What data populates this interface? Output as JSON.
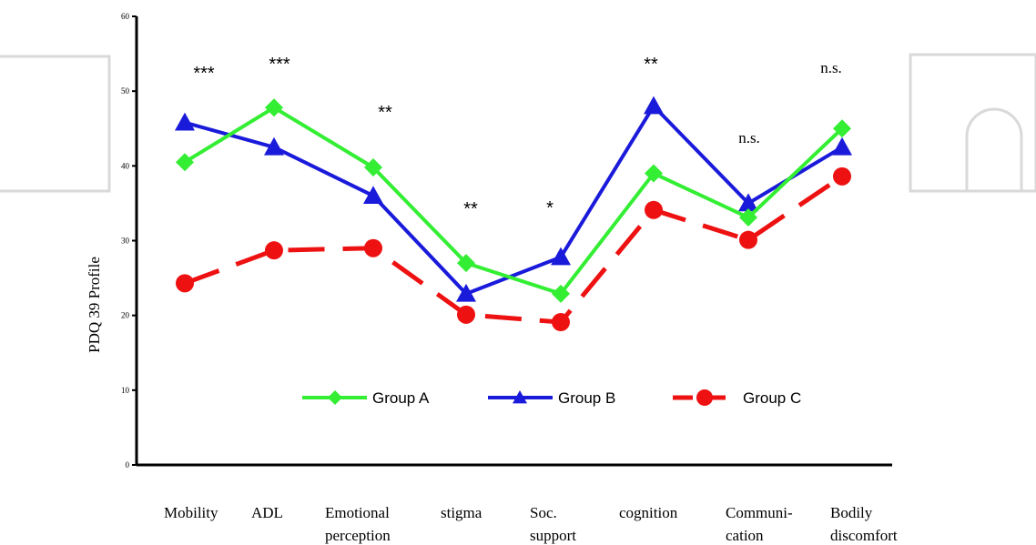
{
  "chart_data": {
    "type": "line",
    "title": "",
    "xlabel": "",
    "ylabel": "PDQ 39 Profile",
    "ylim": [
      0,
      60
    ],
    "yticks": [
      0,
      10,
      20,
      30,
      40,
      50,
      60
    ],
    "grid": false,
    "legend_position": "bottom-center",
    "categories": [
      [
        "Mobility"
      ],
      [
        "ADL"
      ],
      [
        "Emotional",
        "perception"
      ],
      [
        "stigma"
      ],
      [
        "Soc.",
        "support"
      ],
      [
        "cognition"
      ],
      [
        "Communi-",
        "cation"
      ],
      [
        "Bodily",
        "discomfort"
      ]
    ],
    "significance": [
      "***",
      "***",
      "**",
      "**",
      "*",
      "**",
      "n.s.",
      "n.s."
    ],
    "series": [
      {
        "name": "Group A",
        "color": "#33ee33",
        "marker": "diamond",
        "dash": "solid",
        "values": [
          40.5,
          47.8,
          39.8,
          27.0,
          22.9,
          39.0,
          33.1,
          45.0
        ]
      },
      {
        "name": "Group B",
        "color": "#1a1adb",
        "marker": "triangle",
        "dash": "solid",
        "values": [
          45.8,
          42.5,
          36.0,
          22.9,
          27.8,
          48.0,
          35.0,
          42.5
        ]
      },
      {
        "name": "Group C",
        "color": "#ee1111",
        "marker": "circle",
        "dash": "dashed",
        "values": [
          24.3,
          28.7,
          29.0,
          20.1,
          19.1,
          34.1,
          30.1,
          38.6
        ]
      }
    ]
  }
}
